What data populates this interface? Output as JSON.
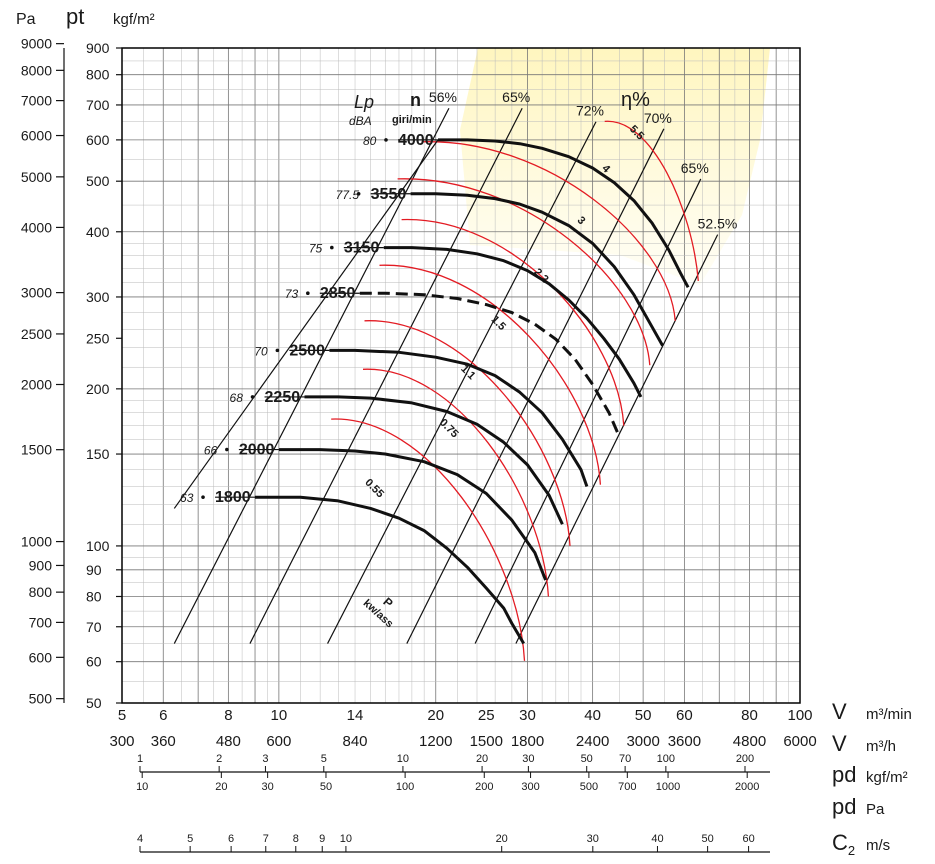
{
  "chart_data": {
    "type": "line",
    "x_scale": "log",
    "y_scale": "log",
    "xlim": [
      5,
      100
    ],
    "ylim": [
      50,
      900
    ],
    "grid": true,
    "left_axis": {
      "pa_label": "Pa",
      "pt_label": "pt",
      "kgf_label": "kgf/m²",
      "pa_ticks": [
        {
          "v": 500,
          "label": "500"
        },
        {
          "v": 600,
          "label": "600"
        },
        {
          "v": 700,
          "label": "700"
        },
        {
          "v": 800,
          "label": "800"
        },
        {
          "v": 900,
          "label": "900"
        },
        {
          "v": 1000,
          "label": "1000"
        },
        {
          "v": 1500,
          "label": "1500"
        },
        {
          "v": 2000,
          "label": "2000"
        },
        {
          "v": 2500,
          "label": "2500"
        },
        {
          "v": 3000,
          "label": "3000"
        },
        {
          "v": 4000,
          "label": "4000"
        },
        {
          "v": 5000,
          "label": "5000"
        },
        {
          "v": 6000,
          "label": "6000"
        },
        {
          "v": 7000,
          "label": "7000"
        },
        {
          "v": 8000,
          "label": "8000"
        },
        {
          "v": 9000,
          "label": "9000"
        }
      ],
      "kgf_ticks": [
        {
          "v": 50,
          "label": "50"
        },
        {
          "v": 60,
          "label": "60"
        },
        {
          "v": 70,
          "label": "70"
        },
        {
          "v": 80,
          "label": "80"
        },
        {
          "v": 90,
          "label": "90"
        },
        {
          "v": 100,
          "label": "100"
        },
        {
          "v": 150,
          "label": "150"
        },
        {
          "v": 200,
          "label": "200"
        },
        {
          "v": 250,
          "label": "250"
        },
        {
          "v": 300,
          "label": "300"
        },
        {
          "v": 400,
          "label": "400"
        },
        {
          "v": 500,
          "label": "500"
        },
        {
          "v": 600,
          "label": "600"
        },
        {
          "v": 700,
          "label": "700"
        },
        {
          "v": 800,
          "label": "800"
        },
        {
          "v": 900,
          "label": "900"
        }
      ]
    },
    "x_axis": {
      "v_label": "V",
      "m3min_unit": "m³/min",
      "m3h_unit": "m³/h",
      "ticks": [
        {
          "v": 5,
          "label": "5",
          "h_label": "300"
        },
        {
          "v": 6,
          "label": "6",
          "h_label": "360"
        },
        {
          "v": 8,
          "label": "8",
          "h_label": "480"
        },
        {
          "v": 10,
          "label": "10",
          "h_label": "600"
        },
        {
          "v": 14,
          "label": "14",
          "h_label": "840"
        },
        {
          "v": 20,
          "label": "20",
          "h_label": "1200"
        },
        {
          "v": 25,
          "label": "25",
          "h_label": "1500"
        },
        {
          "v": 30,
          "label": "30",
          "h_label": "1800"
        },
        {
          "v": 40,
          "label": "40",
          "h_label": "2400"
        },
        {
          "v": 50,
          "label": "50",
          "h_label": "3000"
        },
        {
          "v": 60,
          "label": "60",
          "h_label": "3600"
        },
        {
          "v": 80,
          "label": "80",
          "h_label": "4800"
        },
        {
          "v": 100,
          "label": "100",
          "h_label": "6000"
        }
      ]
    },
    "pd_scale": {
      "kgf_label": "pd",
      "kgf_unit": "kgf/m²",
      "pa_label": "pd",
      "pa_unit": "Pa",
      "kgf_ticks": [
        {
          "v": 1,
          "label": "1"
        },
        {
          "v": 2,
          "label": "2"
        },
        {
          "v": 3,
          "label": "3"
        },
        {
          "v": 5,
          "label": "5"
        },
        {
          "v": 10,
          "label": "10"
        },
        {
          "v": 20,
          "label": "20"
        },
        {
          "v": 30,
          "label": "30"
        },
        {
          "v": 50,
          "label": "50"
        },
        {
          "v": 70,
          "label": "70"
        },
        {
          "v": 100,
          "label": "100"
        },
        {
          "v": 200,
          "label": "200"
        }
      ],
      "pa_ticks": [
        {
          "v": 10,
          "label": "10"
        },
        {
          "v": 20,
          "label": "20"
        },
        {
          "v": 30,
          "label": "30"
        },
        {
          "v": 50,
          "label": "50"
        },
        {
          "v": 100,
          "label": "100"
        },
        {
          "v": 200,
          "label": "200"
        },
        {
          "v": 300,
          "label": "300"
        },
        {
          "v": 500,
          "label": "500"
        },
        {
          "v": 700,
          "label": "700"
        },
        {
          "v": 1000,
          "label": "1000"
        },
        {
          "v": 2000,
          "label": "2000"
        }
      ]
    },
    "c2_scale": {
      "label": "C",
      "sub": "2",
      "unit": "m/s",
      "ticks": [
        {
          "v": 4,
          "label": "4"
        },
        {
          "v": 5,
          "label": "5"
        },
        {
          "v": 6,
          "label": "6"
        },
        {
          "v": 7,
          "label": "7"
        },
        {
          "v": 8,
          "label": "8"
        },
        {
          "v": 9,
          "label": "9"
        },
        {
          "v": 10,
          "label": "10"
        },
        {
          "v": 20,
          "label": "20"
        },
        {
          "v": 30,
          "label": "30"
        },
        {
          "v": 40,
          "label": "40"
        },
        {
          "v": 50,
          "label": "50"
        },
        {
          "v": 60,
          "label": "60"
        }
      ]
    },
    "header_labels": {
      "lp": "Lp",
      "dba": "dBA",
      "n": "n",
      "giri": "giri/min",
      "eta": "η%"
    },
    "power_axis_label": {
      "p": "P",
      "unit": "kw/ass"
    },
    "efficiency_lines": [
      {
        "label": "56%",
        "points": [
          [
            6.3,
            65
          ],
          [
            21.2,
            690
          ]
        ]
      },
      {
        "label": "65%",
        "points": [
          [
            8.8,
            65
          ],
          [
            29.3,
            690
          ]
        ]
      },
      {
        "label": "72%",
        "points": [
          [
            12.4,
            65
          ],
          [
            40.6,
            650
          ]
        ]
      },
      {
        "label": "70%",
        "points": [
          [
            17.6,
            65
          ],
          [
            54.8,
            630
          ]
        ]
      },
      {
        "label": "65%",
        "points": [
          [
            23.8,
            65
          ],
          [
            64.5,
            505
          ]
        ]
      },
      {
        "label": "52.5%",
        "points": [
          [
            28.5,
            65
          ],
          [
            69.5,
            395
          ]
        ]
      }
    ],
    "power_lines": [
      {
        "label": "0.55",
        "points": [
          [
            12.6,
            175
          ],
          [
            29.6,
            60.2
          ]
        ]
      },
      {
        "label": "0.75",
        "points": [
          [
            14.5,
            218
          ],
          [
            32.9,
            80
          ]
        ]
      },
      {
        "label": "1.1",
        "points": [
          [
            14.6,
            270
          ],
          [
            36.2,
            100
          ]
        ]
      },
      {
        "label": "1.5",
        "points": [
          [
            15.6,
            345
          ],
          [
            41.4,
            131
          ]
        ]
      },
      {
        "label": "2.2",
        "points": [
          [
            17.2,
            422
          ],
          [
            45.9,
            170
          ]
        ]
      },
      {
        "label": "3",
        "points": [
          [
            16.9,
            505
          ],
          [
            51.5,
            222
          ]
        ]
      },
      {
        "label": "4",
        "points": [
          [
            18.8,
            595
          ],
          [
            57.6,
            270
          ]
        ]
      },
      {
        "label": "5.5",
        "points": [
          [
            42.2,
            651
          ],
          [
            63.8,
            322
          ]
        ]
      }
    ],
    "series": [
      {
        "name": "1800",
        "dba": "63",
        "x": [
          9,
          11,
          13,
          15,
          17,
          19,
          21,
          23,
          25,
          27,
          28,
          29.5
        ],
        "y": [
          124,
          124,
          122,
          118,
          113,
          107,
          99,
          91,
          83,
          76,
          71,
          65
        ]
      },
      {
        "name": "2000",
        "dba": "66",
        "x": [
          10,
          12,
          14,
          16,
          19,
          22,
          25,
          28,
          31,
          32.5
        ],
        "y": [
          153,
          153,
          152,
          150,
          145,
          137,
          126,
          112,
          97,
          86
        ]
      },
      {
        "name": "2250",
        "dba": "68",
        "x": [
          11.2,
          13,
          15,
          18,
          21,
          24,
          27,
          30,
          33,
          35
        ],
        "y": [
          193,
          193,
          192,
          188,
          181,
          171,
          158,
          143,
          125,
          110
        ]
      },
      {
        "name": "2500",
        "dba": "70",
        "x": [
          12.5,
          14,
          17,
          20,
          23,
          26,
          29,
          32,
          35,
          38,
          39
        ],
        "y": [
          237,
          237,
          235,
          230,
          223,
          212,
          197,
          180,
          160,
          140,
          130
        ]
      },
      {
        "name": "2850",
        "dba": "73",
        "x": [
          14.3,
          16,
          19,
          22,
          25,
          28,
          31,
          34,
          37,
          40,
          43,
          45
        ],
        "y": [
          305,
          305,
          303,
          298,
          290,
          280,
          266,
          249,
          228,
          204,
          180,
          162
        ]
      },
      {
        "name": "3150",
        "dba": "75",
        "x": [
          15.9,
          18,
          21,
          24,
          27,
          30,
          33,
          36,
          39,
          42,
          45,
          48,
          49.5
        ],
        "y": [
          373,
          373,
          370,
          363,
          352,
          337,
          318,
          296,
          273,
          250,
          228,
          205,
          193
        ]
      },
      {
        "name": "3550",
        "dba": "77.5",
        "x": [
          17.9,
          20,
          23,
          26,
          29,
          32,
          36,
          40,
          44,
          48,
          52,
          54.5
        ],
        "y": [
          473,
          473,
          470,
          463,
          452,
          436,
          411,
          380,
          343,
          303,
          263,
          242
        ]
      },
      {
        "name": "4000",
        "dba": "80",
        "x": [
          20.2,
          23,
          26,
          29,
          32,
          36,
          40,
          44,
          48,
          52,
          56,
          59,
          61
        ],
        "y": [
          600,
          600,
          597,
          590,
          578,
          557,
          530,
          497,
          459,
          416,
          369,
          333,
          313
        ]
      }
    ]
  }
}
